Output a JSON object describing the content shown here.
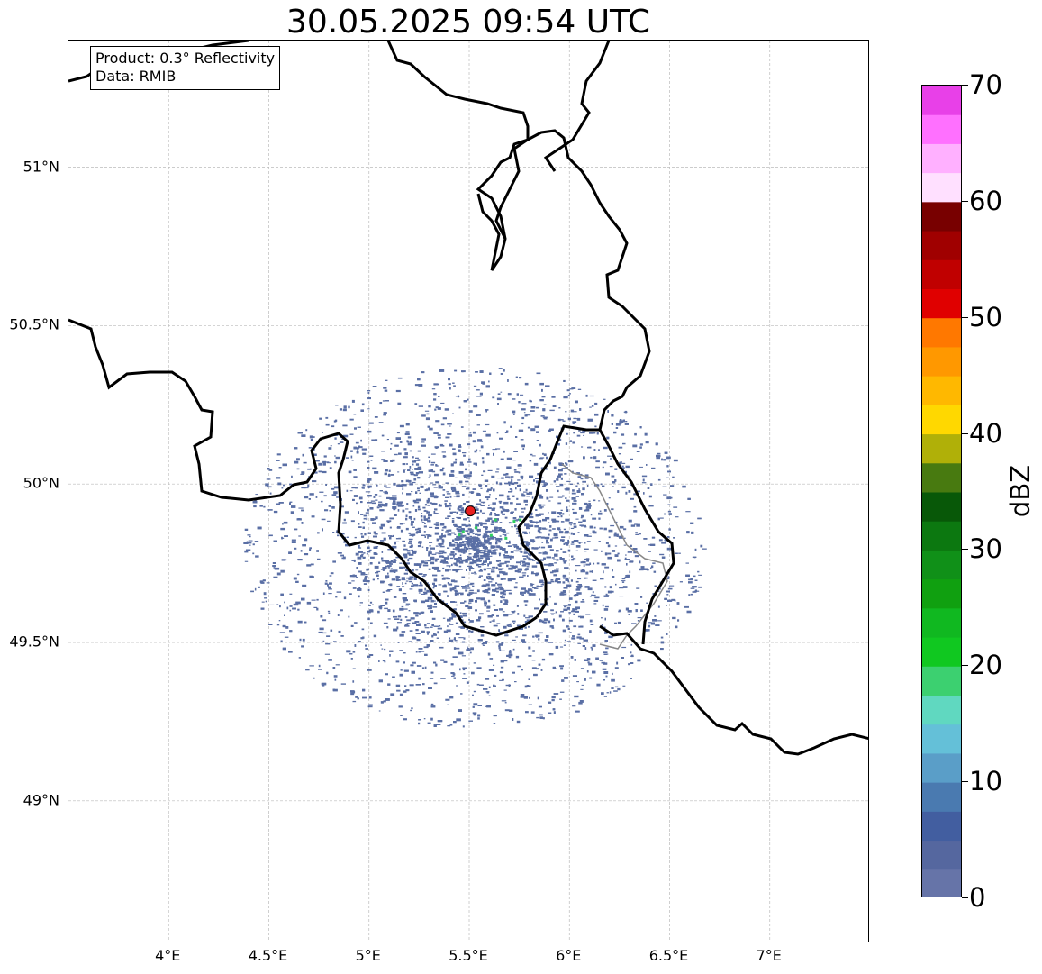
{
  "title": "30.05.2025 09:54 UTC",
  "info_box": {
    "product_line": "Product: 0.3° Reflectivity",
    "data_line": "Data: RMIB"
  },
  "map": {
    "lon_range": [
      3.5,
      7.5
    ],
    "lat_range": [
      48.55,
      51.4
    ],
    "x_ticks": [
      "4°E",
      "4.5°E",
      "5°E",
      "5.5°E",
      "6°E",
      "6.5°E",
      "7°E"
    ],
    "x_tick_values": [
      4.0,
      4.5,
      5.0,
      5.5,
      6.0,
      6.5,
      7.0
    ],
    "y_ticks": [
      "49°N",
      "49.5°N",
      "50°N",
      "50.5°N",
      "51°N"
    ],
    "y_tick_values": [
      49.0,
      49.5,
      50.0,
      50.5,
      51.0
    ],
    "gridlines": true,
    "radar_site": {
      "lon": 5.505,
      "lat": 49.915,
      "color": "#e82020"
    },
    "echo_center": {
      "lon": 5.52,
      "lat": 49.8
    },
    "echo_extent_lon": [
      4.4,
      6.7
    ],
    "echo_extent_lat": [
      49.15,
      50.3
    ],
    "echo_color": "#5a6fa5",
    "border_color": "#000000",
    "region_border_color": "#888888"
  },
  "colorbar": {
    "label": "dBZ",
    "min": 0,
    "max": 70,
    "tick_labels": [
      "0",
      "10",
      "20",
      "30",
      "40",
      "50",
      "60",
      "70"
    ],
    "tick_values": [
      0,
      10,
      20,
      30,
      40,
      50,
      60,
      70
    ],
    "colors": [
      "#6674a8",
      "#55679f",
      "#425ea0",
      "#4a7ab0",
      "#5a9ec8",
      "#64c0d8",
      "#60d8c0",
      "#3cd070",
      "#10c820",
      "#10b820",
      "#10a010",
      "#109018",
      "#0c7810",
      "#085808",
      "#487a10",
      "#b0b008",
      "#ffd800",
      "#ffb800",
      "#ff9800",
      "#ff7800",
      "#e00000",
      "#c00000",
      "#a00000",
      "#780000",
      "#ffe0ff",
      "#ffb0ff",
      "#ff70ff",
      "#e840e8"
    ]
  }
}
